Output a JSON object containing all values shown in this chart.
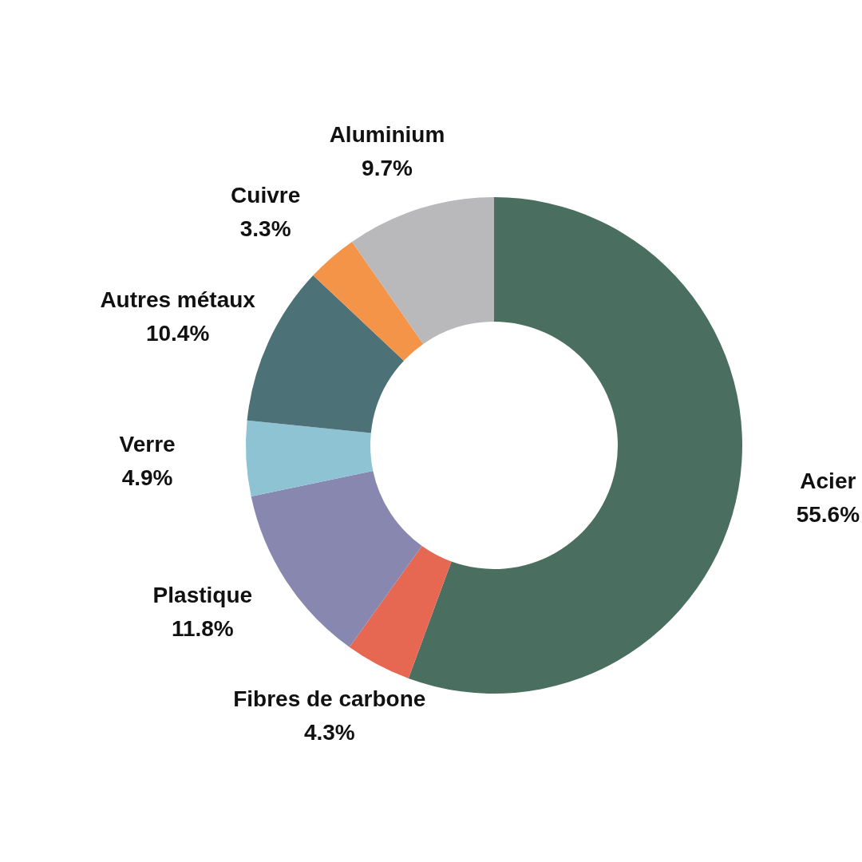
{
  "chart_data": {
    "type": "donut",
    "categories": [
      "Acier",
      "Fibres de carbone",
      "Plastique",
      "Verre",
      "Autres métaux",
      "Cuivre",
      "Aluminium"
    ],
    "values": [
      55.6,
      4.3,
      11.8,
      4.9,
      10.4,
      3.3,
      9.7
    ],
    "value_labels": [
      "55.6%",
      "4.3%",
      "11.8%",
      "4.9%",
      "10.4%",
      "3.3%",
      "9.7%"
    ],
    "colors": [
      "#4a6e5f",
      "#e76852",
      "#8887b0",
      "#8dc3d3",
      "#4c7177",
      "#f39449",
      "#b9b8bb"
    ],
    "legend": false
  }
}
